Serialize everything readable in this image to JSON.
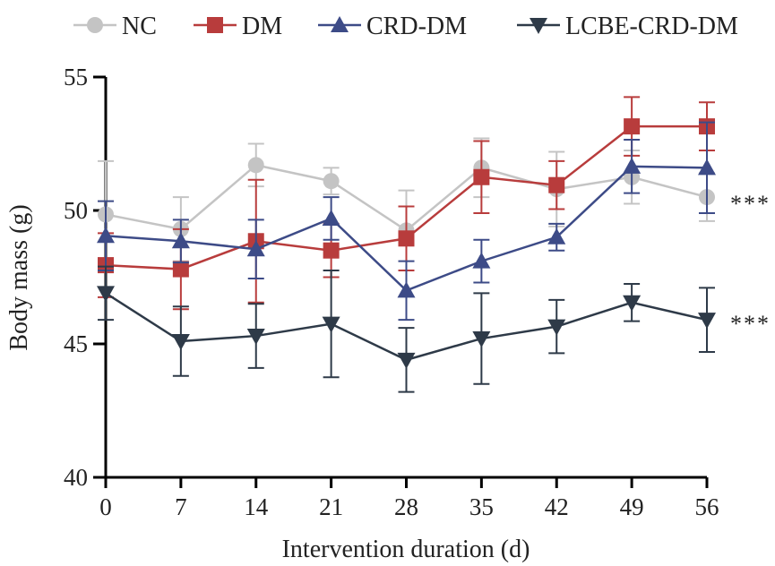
{
  "chart_data": {
    "type": "line",
    "xlabel": "Intervention duration (d)",
    "ylabel": "Body mass (g)",
    "x": [
      0,
      7,
      14,
      21,
      28,
      35,
      42,
      49,
      56
    ],
    "xlim": [
      0,
      56
    ],
    "ylim": [
      40,
      55
    ],
    "xticks": [
      "0",
      "7",
      "14",
      "21",
      "28",
      "35",
      "42",
      "49",
      "56"
    ],
    "yticks": [
      "40",
      "45",
      "50",
      "55"
    ],
    "legend_position": "top",
    "grid": false,
    "series": [
      {
        "name": "NC",
        "color": "#c4c4c4",
        "marker": "circle",
        "values": [
          49.85,
          49.3,
          51.7,
          51.1,
          49.25,
          51.6,
          50.8,
          51.25,
          50.5
        ],
        "error": [
          2.0,
          1.2,
          0.8,
          0.5,
          1.5,
          1.1,
          1.4,
          1.0,
          0.9
        ]
      },
      {
        "name": "DM",
        "color": "#b83c3c",
        "marker": "square",
        "values": [
          47.95,
          47.8,
          48.85,
          48.5,
          48.95,
          51.25,
          50.95,
          53.15,
          53.15
        ],
        "error": [
          1.2,
          1.5,
          2.3,
          1.0,
          1.2,
          1.35,
          0.9,
          1.1,
          0.9
        ]
      },
      {
        "name": "CRD-DM",
        "color": "#3d4b87",
        "marker": "triangle-up",
        "values": [
          49.05,
          48.85,
          48.55,
          49.7,
          47.0,
          48.1,
          49.0,
          51.65,
          51.6
        ],
        "error": [
          1.3,
          0.8,
          1.1,
          0.8,
          1.1,
          0.8,
          0.5,
          1.0,
          1.7
        ]
      },
      {
        "name": "LCBE-CRD-DM",
        "color": "#2e3a48",
        "marker": "triangle-down",
        "values": [
          46.9,
          45.1,
          45.3,
          45.75,
          44.4,
          45.2,
          45.65,
          46.55,
          45.9
        ],
        "error": [
          1.0,
          1.3,
          1.2,
          2.0,
          1.2,
          1.7,
          1.0,
          0.7,
          1.2
        ]
      }
    ],
    "annotations": [
      {
        "text": "***",
        "x": 56,
        "y": 50.4
      },
      {
        "text": "***",
        "x": 56,
        "y": 45.9
      }
    ]
  }
}
